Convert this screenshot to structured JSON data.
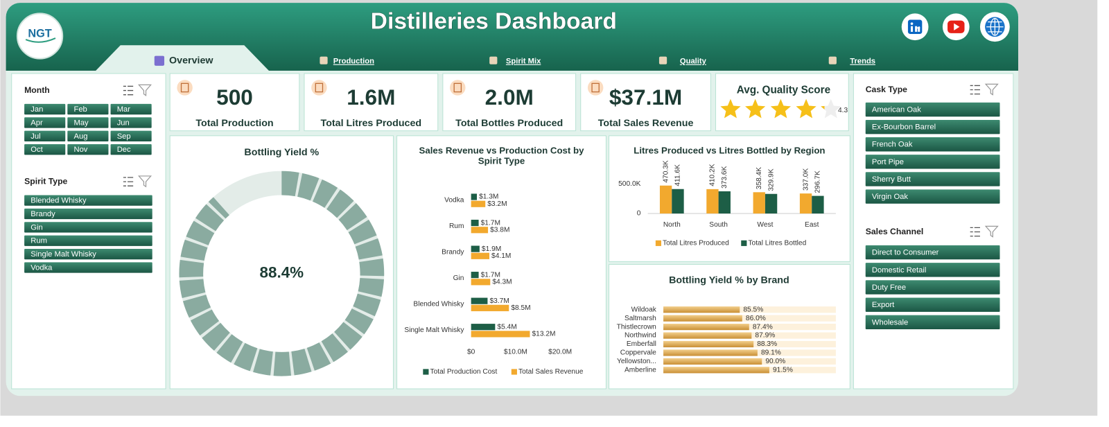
{
  "header": {
    "title": "Distilleries Dashboard",
    "logo": "NGT",
    "tabs": [
      "Overview",
      "Production",
      "Spirit Mix",
      "Quality",
      "Trends"
    ]
  },
  "slicers": [
    {
      "title": "Month",
      "items": [
        "Jan",
        "Feb",
        "Mar",
        "Apr",
        "May",
        "Jun",
        "Jul",
        "Aug",
        "Sep",
        "Oct",
        "Nov",
        "Dec"
      ]
    },
    {
      "title": "Spirit Type",
      "items": [
        "Blended Whisky",
        "Brandy",
        "Gin",
        "Rum",
        "Single Malt Whisky",
        "Vodka"
      ]
    },
    {
      "title": "Cask Type",
      "items": [
        "American Oak",
        "Ex-Bourbon Barrel",
        "French Oak",
        "Port Pipe",
        "Sherry Butt",
        "Virgin Oak"
      ]
    },
    {
      "title": "Sales Channel",
      "items": [
        "Direct to Consumer",
        "Domestic Retail",
        "Duty Free",
        "Export",
        "Wholesale"
      ]
    }
  ],
  "kpis": [
    {
      "value": 500,
      "label": "Total Production"
    },
    {
      "value": "1.6M",
      "label": "Total Litres Produced"
    },
    {
      "value": "2.0M",
      "label": "Total Bottles Produced"
    },
    {
      "value": "$37.1M",
      "label": "Total Sales Revenue"
    }
  ],
  "quality": {
    "title": "Avg. Quality Score",
    "score": 4.3
  },
  "chart_data": [
    {
      "type": "donut",
      "title": "Bottling Yield %",
      "values": [
        88.4
      ],
      "value_labels": [
        "88.4%"
      ],
      "color": "#8aaba0"
    },
    {
      "type": "bar",
      "orientation": "horizontal",
      "title": "Sales Revenue vs Production Cost by Spirit Type",
      "categories": [
        "Vodka",
        "Rum",
        "Brandy",
        "Gin",
        "Blended Whisky",
        "Single Malt Whisky"
      ],
      "series": [
        {
          "name": "Total Production Cost",
          "color": "#1d5e46",
          "values": [
            1300000,
            1700000,
            1900000,
            1700000,
            3700000,
            5400000
          ],
          "value_labels": [
            "$1.3M",
            "$1.7M",
            "$1.9M",
            "$1.7M",
            "$3.7M",
            "$5.4M"
          ]
        },
        {
          "name": "Total Sales Revenue",
          "color": "#f2a92e",
          "values": [
            3200000,
            3800000,
            4100000,
            4300000,
            8500000,
            13200000
          ],
          "value_labels": [
            "$3.2M",
            "$3.8M",
            "$4.1M",
            "$4.3M",
            "$8.5M",
            "$13.2M"
          ]
        }
      ],
      "xlim": [
        0,
        20000000
      ],
      "xticks": [
        {
          "value": 0,
          "label": "$0"
        },
        {
          "value": 10000000,
          "label": "$10.0M"
        },
        {
          "value": 20000000,
          "label": "$20.0M"
        }
      ]
    },
    {
      "type": "bar",
      "orientation": "vertical",
      "title": "Litres Produced vs Litres Bottled by Region",
      "categories": [
        "North",
        "South",
        "West",
        "East"
      ],
      "series": [
        {
          "name": "Total Litres Produced",
          "color": "#f2a92e",
          "values": [
            470300,
            410200,
            358400,
            337000
          ],
          "value_labels": [
            "470.3K",
            "410.2K",
            "358.4K",
            "337.0K"
          ]
        },
        {
          "name": "Total Litres Bottled",
          "color": "#1d5e46",
          "values": [
            411600,
            373600,
            329900,
            296700
          ],
          "value_labels": [
            "411.6K",
            "373.6K",
            "329.9K",
            "296.7K"
          ]
        }
      ],
      "ylim": [
        0,
        1000000
      ],
      "yticks": [
        0,
        {
          "value": 500000,
          "label": "500.0K"
        }
      ]
    },
    {
      "type": "bar",
      "orientation": "horizontal",
      "title": "Bottling Yield % by Brand",
      "categories": [
        "Wildoak",
        "Saltmarsh",
        "Thistlecrown",
        "Northwind",
        "Emberfall",
        "Coppervale",
        "Yellowston...",
        "Amberline"
      ],
      "values": [
        85.5,
        86.0,
        87.4,
        87.9,
        88.3,
        89.1,
        90.0,
        91.5
      ],
      "value_labels": [
        "85.5%",
        "86.0%",
        "87.4%",
        "87.9%",
        "88.3%",
        "89.1%",
        "90.0%",
        "91.5%"
      ],
      "color": "#e2aa52",
      "xlim": [
        70,
        105
      ]
    }
  ]
}
